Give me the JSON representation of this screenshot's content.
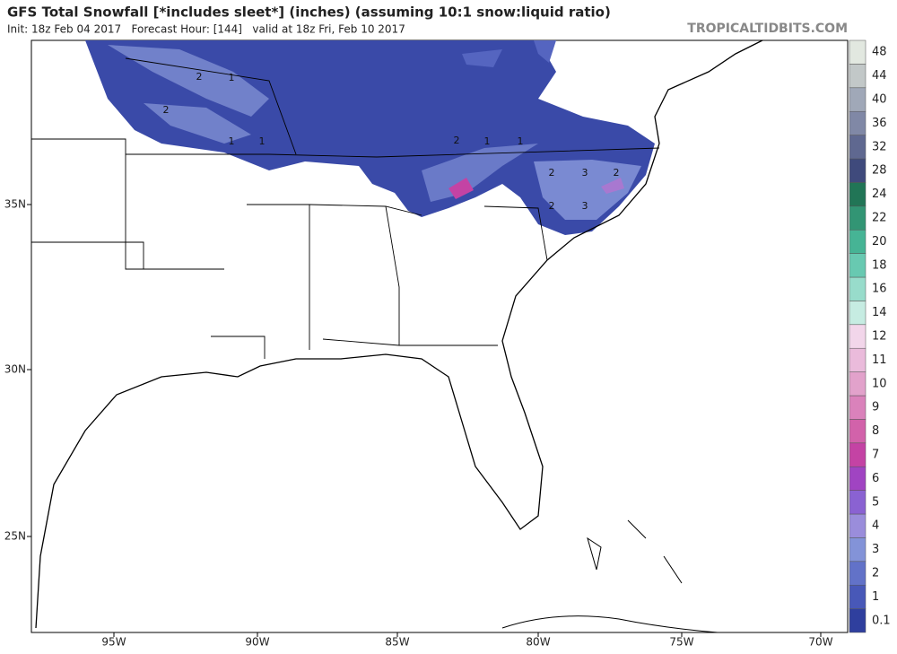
{
  "header": {
    "title": "GFS Total Snowfall [*includes sleet*] (inches) (assuming 10:1 snow:liquid ratio)",
    "subtitle": "Init: 18z Feb 04 2017   Forecast Hour: [144]   valid at 18z Fri, Feb 10 2017",
    "site": "TROPICALTIDBITS.COM"
  },
  "map": {
    "lon_labels": [
      "95W",
      "90W",
      "85W",
      "80W",
      "75W",
      "70W"
    ],
    "lat_labels": [
      "35N",
      "30N",
      "25N"
    ],
    "contour_labels": [
      "2",
      "1",
      "2",
      "1",
      "1",
      "2",
      "1",
      "1",
      "2",
      "3",
      "2",
      "2",
      "3"
    ]
  },
  "colorbar": {
    "labels": [
      "0.1",
      "1",
      "2",
      "3",
      "4",
      "5",
      "6",
      "7",
      "8",
      "9",
      "10",
      "11",
      "12",
      "14",
      "16",
      "18",
      "20",
      "22",
      "24",
      "28",
      "32",
      "36",
      "40",
      "44",
      "48"
    ],
    "colors": [
      "#2f3f9e",
      "#4858b8",
      "#6272c8",
      "#8393d8",
      "#9a8ddb",
      "#8a62d2",
      "#a044c2",
      "#c443a4",
      "#d262aa",
      "#da82bb",
      "#e2a2cb",
      "#eabbdb",
      "#f2d6ea",
      "#c6ece2",
      "#98dccb",
      "#68c9b1",
      "#46b495",
      "#329574",
      "#217556",
      "#3f4a7c",
      "#5f6890",
      "#8088a6",
      "#a0a8b8",
      "#c2c8c8",
      "#e2e8e0"
    ]
  }
}
